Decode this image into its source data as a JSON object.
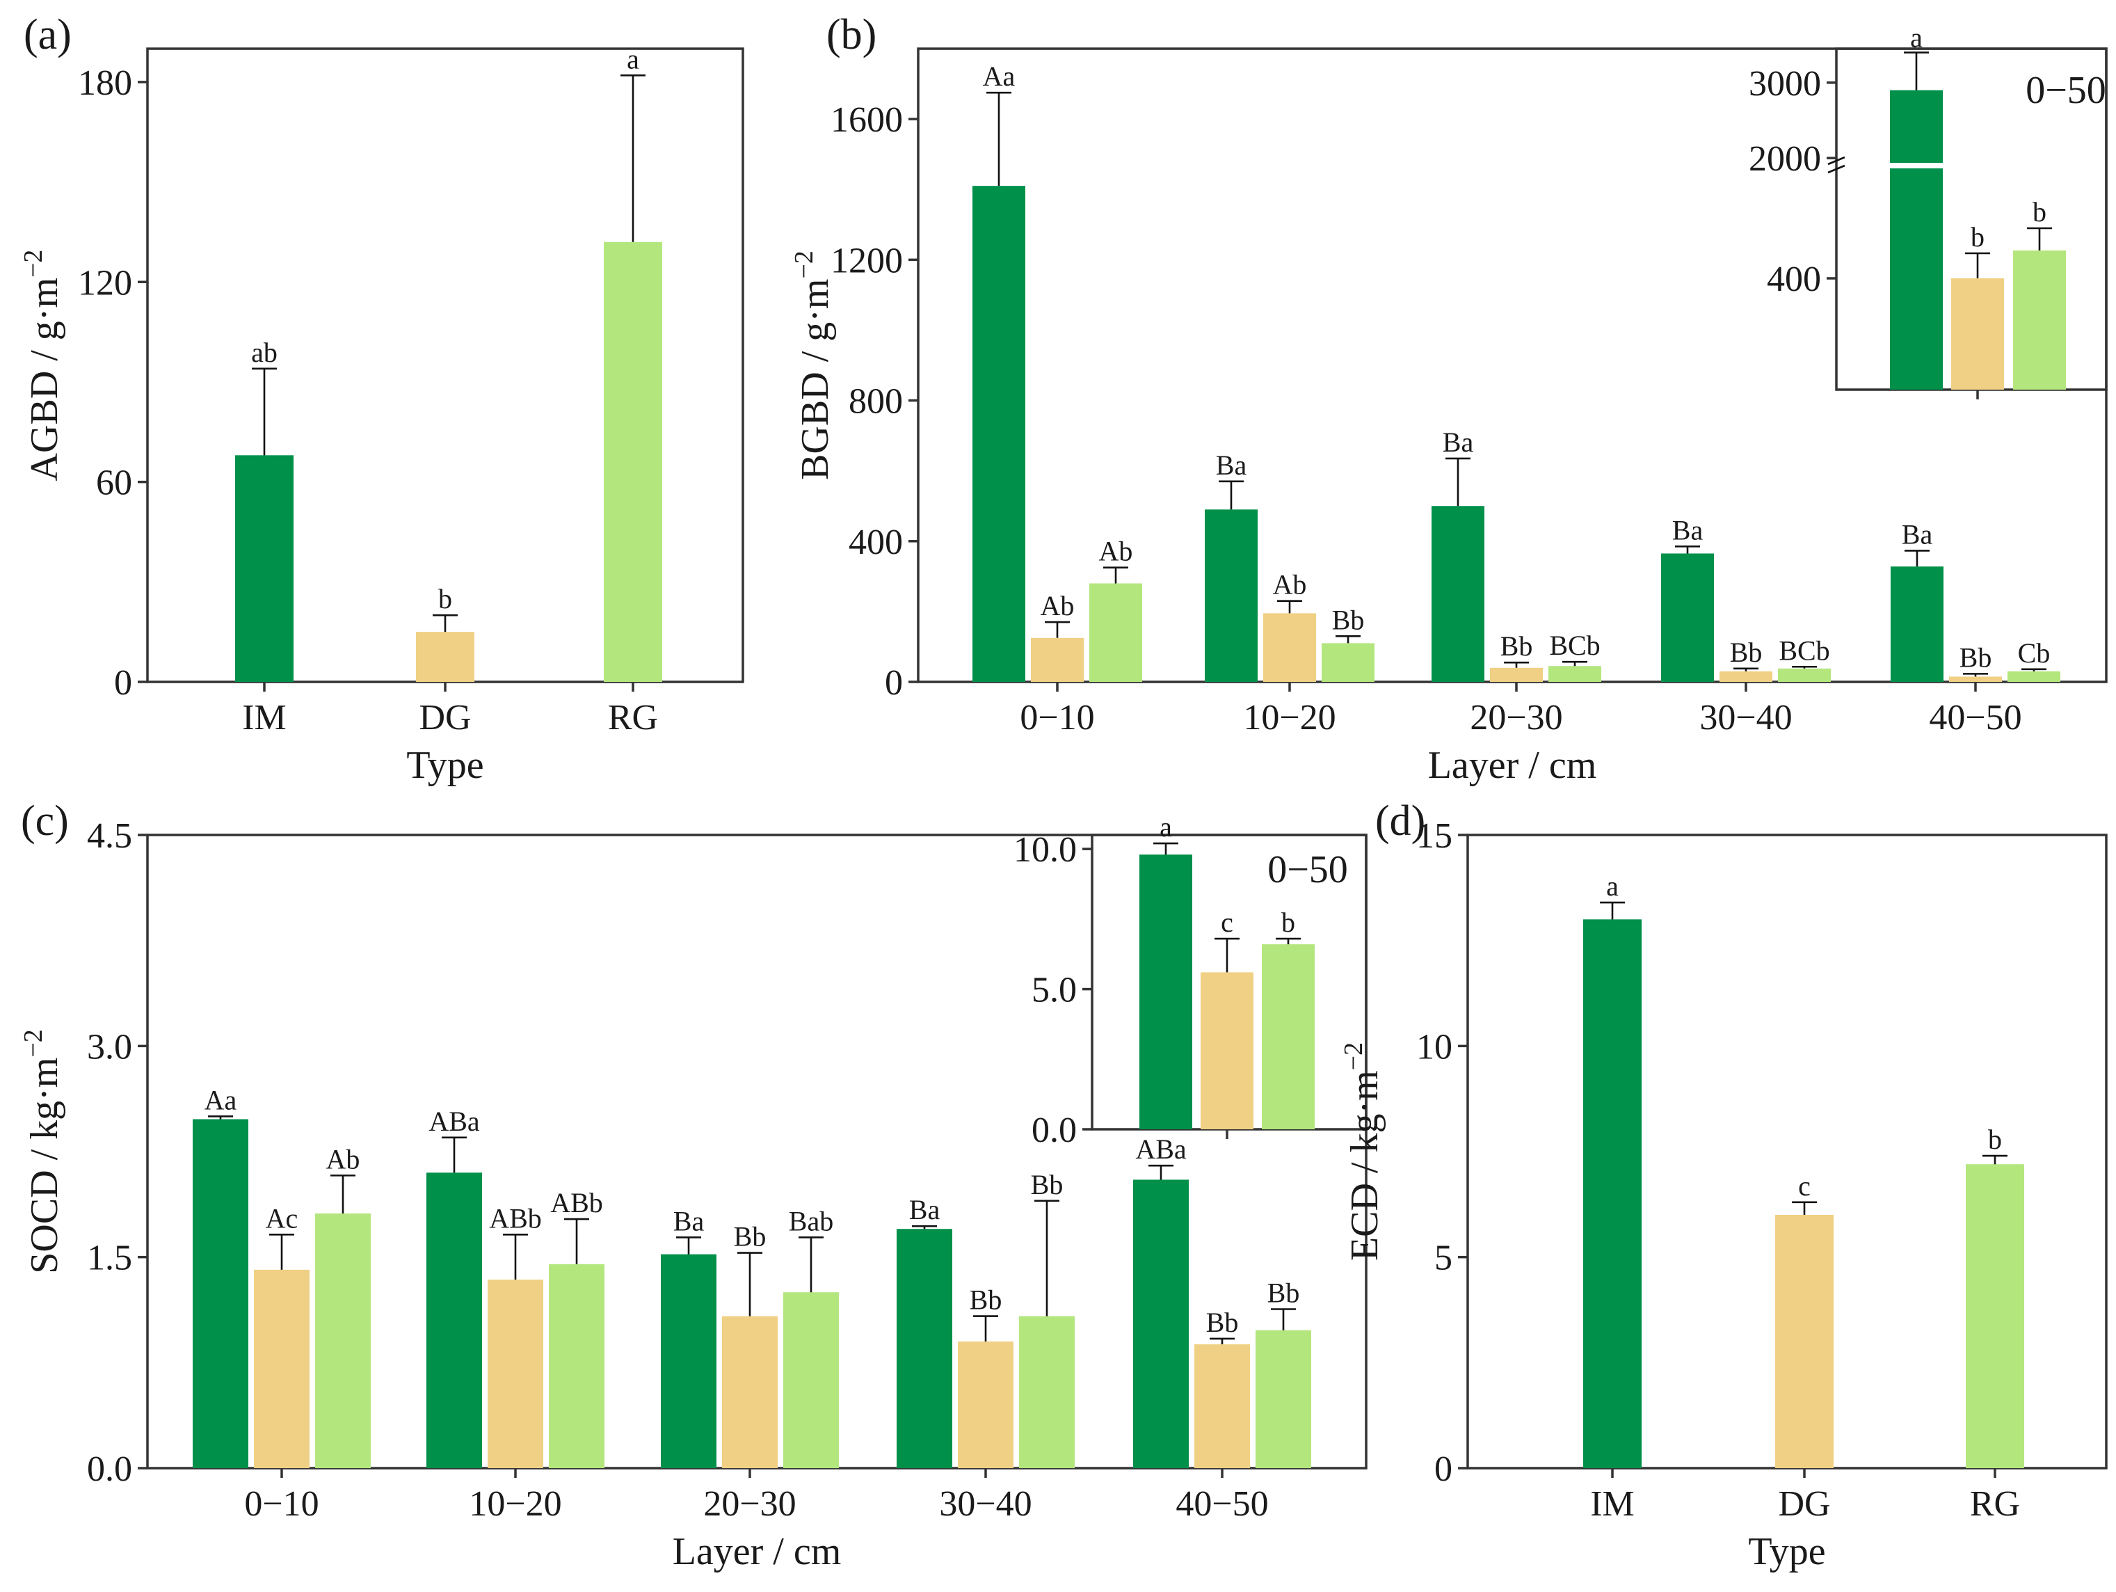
{
  "colors": {
    "IM": "#00904a",
    "DG": "#f0d084",
    "RG": "#b4e67e"
  },
  "chart_data": [
    {
      "id": "a",
      "type": "bar",
      "panel_label": "(a)",
      "ylabel": "AGBD / g·m",
      "ylabel_sup": "−2",
      "xlabel": "Type",
      "ylim": [
        0,
        190
      ],
      "yticks": [
        0,
        60,
        120,
        180
      ],
      "ytick_labels": [
        "0",
        "60",
        "120",
        "180"
      ],
      "categories": [
        "IM",
        "DG",
        "RG"
      ],
      "values": [
        68,
        15,
        132
      ],
      "errors": [
        26,
        5,
        50
      ],
      "letters": [
        "ab",
        "b",
        "a"
      ],
      "inset": null
    },
    {
      "id": "b",
      "type": "bar",
      "panel_label": "(b)",
      "ylabel": "BGBD / g·m",
      "ylabel_sup": "−2",
      "xlabel": "Layer / cm",
      "ylim": [
        0,
        1800
      ],
      "yticks": [
        0,
        400,
        800,
        1200,
        1600
      ],
      "ytick_labels": [
        "0",
        "400",
        "800",
        "1200",
        "1600"
      ],
      "categories": [
        "0−10",
        "10−20",
        "20−30",
        "30−40",
        "40−50"
      ],
      "series": [
        {
          "name": "IM",
          "values": [
            1410,
            490,
            500,
            365,
            328
          ],
          "errors": [
            265,
            80,
            135,
            20,
            45
          ],
          "letters": [
            "Aa",
            "Ba",
            "Ba",
            "Ba",
            "Ba"
          ]
        },
        {
          "name": "DG",
          "values": [
            125,
            195,
            40,
            30,
            15
          ],
          "errors": [
            45,
            35,
            15,
            8,
            8
          ],
          "letters": [
            "Ab",
            "Ab",
            "Bb",
            "Bb",
            "Bb"
          ]
        },
        {
          "name": "RG",
          "values": [
            280,
            110,
            45,
            38,
            30
          ],
          "errors": [
            45,
            20,
            12,
            5,
            6
          ],
          "letters": [
            "Ab",
            "Bb",
            "BCb",
            "BCb",
            "Cb"
          ]
        }
      ],
      "inset": {
        "title": "0−50",
        "ytick_labels": [
          "400",
          "2000",
          "3000"
        ],
        "axis_break": "400–2000 (broken axis)",
        "categories": [
          "IM",
          "DG",
          "RG"
        ],
        "values": [
          2900,
          400,
          500
        ],
        "errors": [
          500,
          90,
          80
        ],
        "letters": [
          "a",
          "b",
          "b"
        ]
      }
    },
    {
      "id": "c",
      "type": "bar",
      "panel_label": "(c)",
      "ylabel": "SOCD / kg·m",
      "ylabel_sup": "−2",
      "xlabel": "Layer / cm",
      "ylim": [
        0,
        4.5
      ],
      "yticks": [
        0,
        1.5,
        3.0,
        4.5
      ],
      "ytick_labels": [
        "0.0",
        "1.5",
        "3.0",
        "4.5"
      ],
      "categories": [
        "0−10",
        "10−20",
        "20−30",
        "30−40",
        "40−50"
      ],
      "series": [
        {
          "name": "IM",
          "values": [
            2.48,
            2.1,
            1.52,
            1.7,
            2.05
          ],
          "errors": [
            0.02,
            0.25,
            0.12,
            0.02,
            0.1
          ],
          "letters": [
            "Aa",
            "ABa",
            "Ba",
            "Ba",
            "ABa"
          ]
        },
        {
          "name": "DG",
          "values": [
            1.41,
            1.34,
            1.08,
            0.9,
            0.88
          ],
          "errors": [
            0.25,
            0.32,
            0.45,
            0.18,
            0.04
          ],
          "letters": [
            "Ac",
            "ABb",
            "Bb",
            "Bb",
            "Bb"
          ]
        },
        {
          "name": "RG",
          "values": [
            1.81,
            1.45,
            1.25,
            1.08,
            0.98
          ],
          "errors": [
            0.27,
            0.32,
            0.39,
            0.82,
            0.15
          ],
          "letters": [
            "Ab",
            "ABb",
            "Bab",
            "Bb",
            "Bb"
          ]
        }
      ],
      "inset": {
        "title": "0−50",
        "ylim": [
          0,
          10.5
        ],
        "yticks": [
          0,
          5,
          10
        ],
        "ytick_labels": [
          "0.0",
          "5.0",
          "10.0"
        ],
        "categories": [
          "IM",
          "DG",
          "RG"
        ],
        "values": [
          9.8,
          5.6,
          6.6
        ],
        "errors": [
          0.4,
          1.2,
          0.2
        ],
        "letters": [
          "a",
          "c",
          "b"
        ]
      }
    },
    {
      "id": "d",
      "type": "bar",
      "panel_label": "(d)",
      "ylabel": "ECD / kg·m",
      "ylabel_sup": "−2",
      "xlabel": "Type",
      "ylim": [
        0,
        15
      ],
      "yticks": [
        0,
        5,
        10,
        15
      ],
      "ytick_labels": [
        "0",
        "5",
        "10",
        "15"
      ],
      "categories": [
        "IM",
        "DG",
        "RG"
      ],
      "values": [
        13.0,
        6.0,
        7.2
      ],
      "errors": [
        0.4,
        0.3,
        0.2
      ],
      "letters": [
        "a",
        "c",
        "b"
      ],
      "inset": null
    }
  ]
}
